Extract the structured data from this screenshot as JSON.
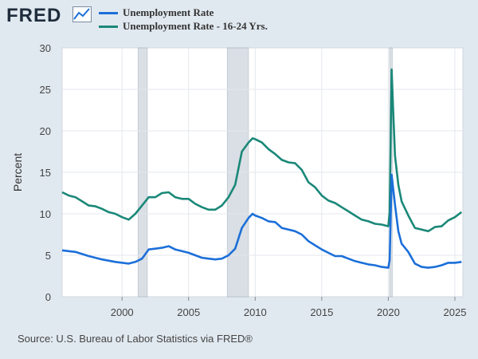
{
  "brand": {
    "logo_text": "FRED",
    "icon": "line-chart-icon"
  },
  "legend": [
    {
      "label": "Unemployment Rate",
      "color": "#1c6fd9"
    },
    {
      "label": "Unemployment Rate - 16-24 Yrs.",
      "color": "#1a8878"
    }
  ],
  "source": "Source: U.S. Bureau of Labor Statistics via FRED®",
  "chart_data": {
    "type": "line",
    "title": "",
    "xlabel": "",
    "ylabel": "Percent",
    "xlim": [
      1995.5,
      2025.6
    ],
    "ylim": [
      0,
      30
    ],
    "x_ticks": [
      2000,
      2005,
      2010,
      2015,
      2020,
      2025
    ],
    "x_tick_labels": [
      "2000",
      "2005",
      "2010",
      "2015",
      "2020",
      "2025"
    ],
    "y_ticks": [
      0,
      5,
      10,
      15,
      20,
      25,
      30
    ],
    "y_tick_labels": [
      "0",
      "5",
      "10",
      "15",
      "20",
      "25",
      "30"
    ],
    "grid": true,
    "recessions": [
      [
        2001.2,
        2001.9
      ],
      [
        2007.9,
        2009.5
      ],
      [
        2020.1,
        2020.3
      ]
    ],
    "series": [
      {
        "name": "Unemployment Rate",
        "color": "#1c6fd9",
        "x": [
          1995.5,
          1996.5,
          1997.5,
          1998.5,
          1999.5,
          2000.5,
          2001.0,
          2001.5,
          2002.0,
          2002.5,
          2003.0,
          2003.5,
          2004.0,
          2004.5,
          2005.0,
          2005.5,
          2006.0,
          2006.5,
          2007.0,
          2007.5,
          2008.0,
          2008.5,
          2009.0,
          2009.5,
          2009.8,
          2010.0,
          2010.5,
          2011.0,
          2011.5,
          2012.0,
          2012.5,
          2013.0,
          2013.5,
          2014.0,
          2014.5,
          2015.0,
          2015.5,
          2016.0,
          2016.5,
          2017.0,
          2017.5,
          2018.0,
          2018.5,
          2019.0,
          2019.5,
          2020.0,
          2020.1,
          2020.25,
          2020.35,
          2020.5,
          2020.75,
          2021.0,
          2021.5,
          2022.0,
          2022.5,
          2023.0,
          2023.5,
          2024.0,
          2024.5,
          2025.0,
          2025.5
        ],
        "values": [
          5.6,
          5.4,
          4.9,
          4.5,
          4.2,
          4.0,
          4.2,
          4.6,
          5.7,
          5.8,
          5.9,
          6.1,
          5.7,
          5.5,
          5.3,
          5.0,
          4.7,
          4.6,
          4.5,
          4.6,
          5.0,
          5.8,
          8.3,
          9.5,
          10.0,
          9.8,
          9.5,
          9.1,
          9.0,
          8.3,
          8.1,
          7.9,
          7.5,
          6.7,
          6.2,
          5.7,
          5.3,
          4.9,
          4.9,
          4.6,
          4.3,
          4.1,
          3.9,
          3.8,
          3.6,
          3.5,
          4.4,
          14.7,
          13.2,
          11.1,
          7.9,
          6.4,
          5.4,
          4.0,
          3.6,
          3.5,
          3.6,
          3.8,
          4.1,
          4.1,
          4.2
        ]
      },
      {
        "name": "Unemployment Rate - 16-24 Yrs.",
        "color": "#1a8878",
        "x": [
          1995.5,
          1996.0,
          1996.5,
          1997.0,
          1997.5,
          1998.0,
          1998.5,
          1999.0,
          1999.5,
          2000.0,
          2000.5,
          2001.0,
          2001.5,
          2002.0,
          2002.5,
          2003.0,
          2003.5,
          2004.0,
          2004.5,
          2005.0,
          2005.5,
          2006.0,
          2006.5,
          2007.0,
          2007.5,
          2008.0,
          2008.5,
          2009.0,
          2009.5,
          2009.8,
          2010.0,
          2010.5,
          2011.0,
          2011.5,
          2012.0,
          2012.5,
          2013.0,
          2013.5,
          2014.0,
          2014.5,
          2015.0,
          2015.5,
          2016.0,
          2016.5,
          2017.0,
          2017.5,
          2018.0,
          2018.5,
          2019.0,
          2019.5,
          2020.0,
          2020.1,
          2020.25,
          2020.35,
          2020.5,
          2020.75,
          2021.0,
          2021.5,
          2022.0,
          2022.5,
          2023.0,
          2023.5,
          2024.0,
          2024.5,
          2025.0,
          2025.5
        ],
        "values": [
          12.6,
          12.2,
          12.0,
          11.5,
          11.0,
          10.9,
          10.6,
          10.2,
          10.0,
          9.6,
          9.3,
          10.0,
          11.0,
          12.0,
          12.0,
          12.5,
          12.6,
          12.0,
          11.8,
          11.8,
          11.2,
          10.8,
          10.5,
          10.5,
          11.0,
          12.0,
          13.5,
          17.5,
          18.6,
          19.1,
          19.0,
          18.6,
          17.8,
          17.2,
          16.5,
          16.2,
          16.1,
          15.3,
          13.8,
          13.2,
          12.2,
          11.6,
          11.3,
          10.8,
          10.3,
          9.8,
          9.3,
          9.1,
          8.8,
          8.7,
          8.5,
          10.2,
          27.4,
          23.0,
          17.0,
          13.5,
          11.5,
          9.8,
          8.3,
          8.1,
          7.9,
          8.4,
          8.5,
          9.2,
          9.6,
          10.2
        ]
      }
    ]
  }
}
